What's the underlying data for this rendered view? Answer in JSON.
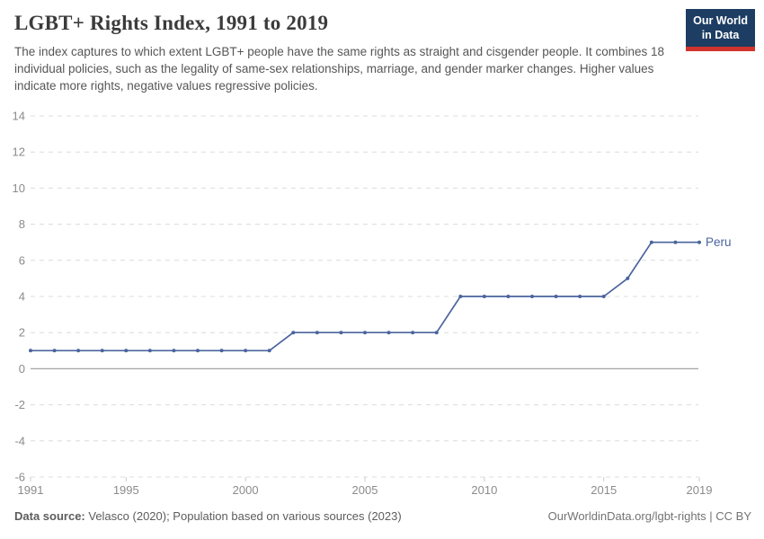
{
  "header": {
    "title": "LGBT+ Rights Index, 1991 to 2019",
    "subtitle": "The index captures to which extent LGBT+ people have the same rights as straight and cisgender people. It combines 18 individual policies, such as the legality of same-sex relationships, marriage, and gender marker changes. Higher values indicate more rights, negative values regressive policies.",
    "logo": {
      "line1": "Our World",
      "line2": "in Data"
    }
  },
  "chart_data": {
    "type": "line",
    "title": "LGBT+ Rights Index, 1991 to 2019",
    "x": [
      1991,
      1992,
      1993,
      1994,
      1995,
      1996,
      1997,
      1998,
      1999,
      2000,
      2001,
      2002,
      2003,
      2004,
      2005,
      2006,
      2007,
      2008,
      2009,
      2010,
      2011,
      2012,
      2013,
      2014,
      2015,
      2016,
      2017,
      2018,
      2019
    ],
    "series": [
      {
        "name": "Peru",
        "values": [
          1,
          1,
          1,
          1,
          1,
          1,
          1,
          1,
          1,
          1,
          1,
          2,
          2,
          2,
          2,
          2,
          2,
          2,
          4,
          4,
          4,
          4,
          4,
          4,
          4,
          5,
          7,
          7,
          7
        ]
      }
    ],
    "x_ticks": [
      1991,
      1995,
      2000,
      2005,
      2010,
      2015,
      2019
    ],
    "y_ticks": [
      -6,
      -4,
      -2,
      0,
      2,
      4,
      6,
      8,
      10,
      12,
      14
    ],
    "xlim": [
      1991,
      2019
    ],
    "ylim": [
      -6,
      14
    ],
    "grid": "horizontal-dashed",
    "legend_position": "end-of-line-label",
    "xlabel": "",
    "ylabel": ""
  },
  "colors": {
    "line": "#4a649e",
    "grid": "#dcdcdc",
    "zero_line": "#a9a9a9",
    "tick_mark": "#cccccc",
    "axis_text": "#8b8b8b",
    "title": "#3b3b3b",
    "subtitle": "#565656",
    "logo_bg": "#1d3d63",
    "logo_accent": "#d0342c",
    "footer_text": "#5c5c5c",
    "footer_link": "#737373"
  },
  "footer": {
    "datasource_label": "Data source:",
    "datasource_text": " Velasco (2020); Population based on various sources (2023)",
    "credit": "OurWorldinData.org/lgbt-rights | CC BY"
  }
}
